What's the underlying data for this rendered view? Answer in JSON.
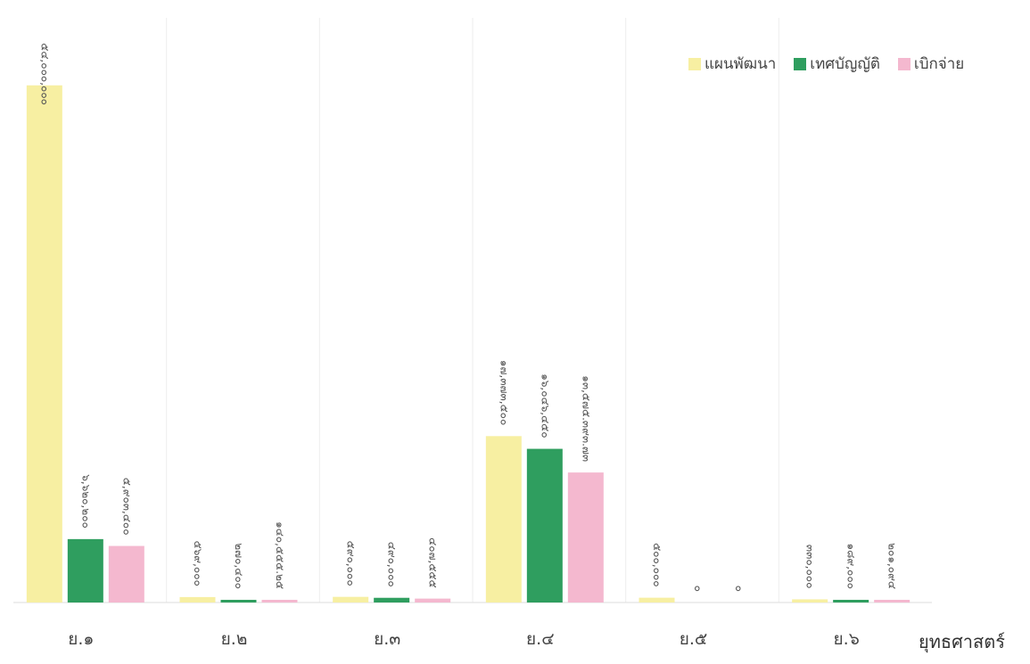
{
  "chart_data": {
    "type": "bar",
    "categories": [
      "ย.๑",
      "ย.๒",
      "ย.๓",
      "ย.๔",
      "ย.๕",
      "ย.๖"
    ],
    "series": [
      {
        "name": "แผนพัฒนา",
        "color": "#f7efa2",
        "values": [
          54000000,
          569000,
          590000,
          17373500,
          500000,
          330000
        ],
        "labels": [
          "๕๔,๐๐๐,๐๐๐",
          "๕๖๙,๐๐๐",
          "๕๙๐,๐๐๐",
          "๑๗,๓๗๓,๕๐๐",
          "๕๐๐,๐๐๐",
          "๓๓๐,๐๐๐"
        ]
      },
      {
        "name": "เทศบัญญัติ",
        "color": "#2f9e5f",
        "values": [
          6620200,
          270400,
          490000,
          16046450,
          0,
          189000
        ],
        "labels": [
          "๖,๖๒๐,๒๐๐",
          "๒๗๐,๔๐๐",
          "๔๙๐,๐๐๐",
          "๑๖,๐๔๖,๔๕๐",
          "๐",
          "๑๘๙,๐๐๐"
        ]
      },
      {
        "name": "เบิกจ่าย",
        "color": "#f4b8cf",
        "values": [
          5903400,
          140555,
          407555,
          13575393,
          0,
          201094
        ],
        "labels": [
          "๕,๙๐๓,๔๐๐",
          "๑๔๐,๕๕๕.๒๕",
          "๔๐๗,๕๕๕",
          "๑๓,๕๗๕.๓๙๓.๗๓",
          "๐",
          "๒๐๑,๐๙๔"
        ]
      }
    ],
    "xlabel": "ยุทธศาสตร์",
    "ylim": [
      0,
      55000000
    ],
    "grid": false,
    "legend_position": "top-right"
  }
}
